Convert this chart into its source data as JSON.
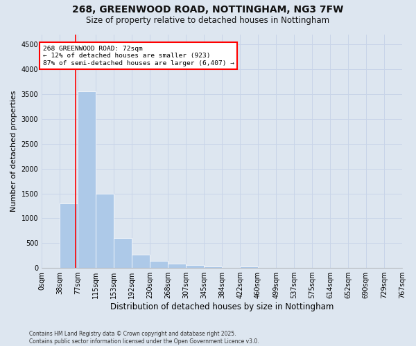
{
  "title_line1": "268, GREENWOOD ROAD, NOTTINGHAM, NG3 7FW",
  "title_line2": "Size of property relative to detached houses in Nottingham",
  "xlabel": "Distribution of detached houses by size in Nottingham",
  "ylabel": "Number of detached properties",
  "bar_color": "#adc9e8",
  "grid_color": "#c8d4e8",
  "background_color": "#dde6f0",
  "annotation_text": "268 GREENWOOD ROAD: 72sqm\n← 12% of detached houses are smaller (923)\n87% of semi-detached houses are larger (6,407) →",
  "annotation_box_color": "white",
  "annotation_box_edge_color": "red",
  "vline_x": 72,
  "vline_color": "red",
  "bin_edges": [
    0,
    38,
    77,
    115,
    153,
    192,
    230,
    268,
    307,
    345,
    384,
    422,
    460,
    499,
    537,
    575,
    614,
    652,
    690,
    729,
    767
  ],
  "bin_values": [
    0,
    1300,
    3550,
    1500,
    600,
    270,
    140,
    80,
    60,
    30,
    0,
    30,
    0,
    0,
    0,
    0,
    0,
    0,
    0,
    0
  ],
  "ylim": [
    0,
    4700
  ],
  "yticks": [
    0,
    500,
    1000,
    1500,
    2000,
    2500,
    3000,
    3500,
    4000,
    4500
  ],
  "footnote": "Contains HM Land Registry data © Crown copyright and database right 2025.\nContains public sector information licensed under the Open Government Licence v3.0.",
  "title_fontsize": 10,
  "subtitle_fontsize": 8.5,
  "tick_label_fontsize": 7,
  "xlabel_fontsize": 8.5,
  "ylabel_fontsize": 8,
  "footnote_fontsize": 5.5
}
